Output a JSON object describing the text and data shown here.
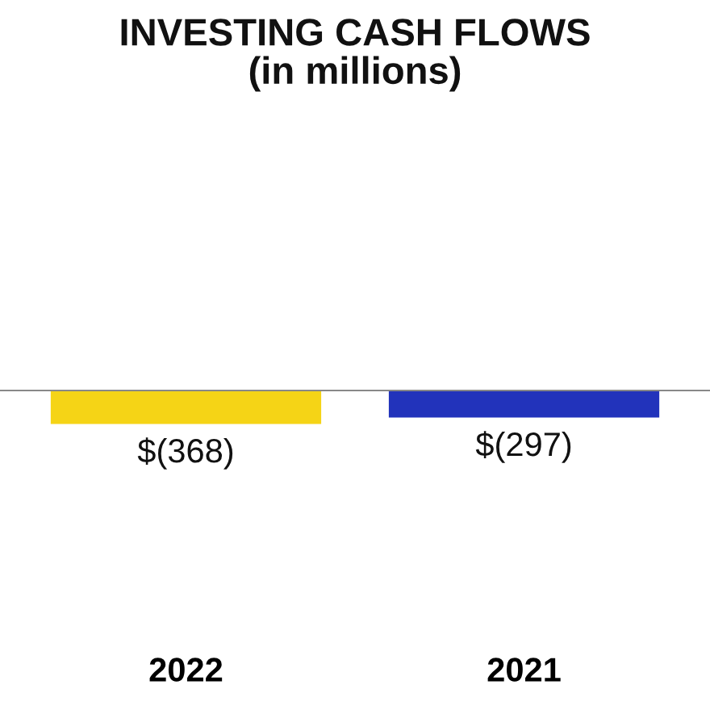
{
  "chart_data": {
    "type": "bar",
    "title": "INVESTING CASH FLOWS\n(in millions)",
    "categories": [
      "2022",
      "2021"
    ],
    "values": [
      -368,
      -297
    ],
    "colors": [
      "#f5d416",
      "#2233bb"
    ],
    "value_labels": [
      "$(368)",
      "$(297)"
    ]
  }
}
